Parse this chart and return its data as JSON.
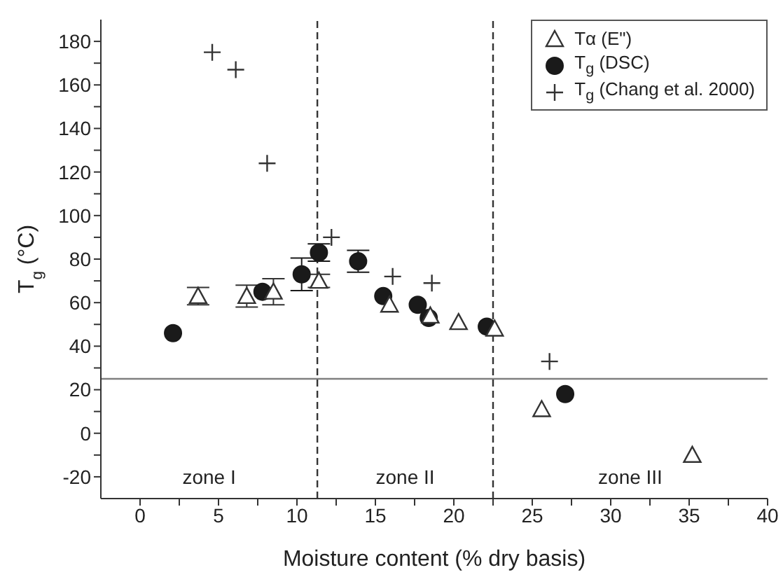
{
  "chart_data": {
    "type": "scatter",
    "xlabel": "Moisture content (% dry basis)",
    "ylabel": "T$_{g}$ (°C)",
    "xlim": [
      -2.5,
      40
    ],
    "xticks": [
      0,
      {
        "value": 2.5,
        "label": null
      },
      5,
      {
        "value": 7.5,
        "label": null
      },
      10,
      {
        "value": 12.5,
        "label": null
      },
      15,
      {
        "value": 17.5,
        "label": null
      },
      20,
      {
        "value": 22.5,
        "label": null
      },
      25,
      {
        "value": 27.5,
        "label": null
      },
      30,
      {
        "value": 32.5,
        "label": null
      },
      35,
      {
        "value": 37.5,
        "label": null
      },
      40
    ],
    "ylim": [
      -30,
      190
    ],
    "yticks": [
      -20,
      {
        "value": -10,
        "label": null
      },
      0,
      {
        "value": 10,
        "label": null
      },
      20,
      {
        "value": 30,
        "label": null
      },
      40,
      {
        "value": 50,
        "label": null
      },
      60,
      {
        "value": 70,
        "label": null
      },
      80,
      {
        "value": 90,
        "label": null
      },
      100,
      {
        "value": 110,
        "label": null
      },
      120,
      {
        "value": 130,
        "label": null
      },
      140,
      {
        "value": 150,
        "label": null
      },
      160,
      {
        "value": 170,
        "label": null
      },
      180
    ],
    "grid": false,
    "legend": "top right",
    "series": [
      {
        "name": "Tα (E\")",
        "color": "#333333",
        "marker": "triangle",
        "x": [
          3.7,
          6.8,
          8.5,
          11.4,
          15.9,
          18.5,
          20.3,
          22.6,
          25.6,
          35.2
        ],
        "values": [
          63,
          63,
          65,
          70,
          59,
          54,
          51,
          48,
          11,
          -10
        ],
        "errors": [
          4,
          5,
          6,
          3,
          null,
          null,
          null,
          null,
          null,
          null
        ]
      },
      {
        "name": "T$_{g}$ (DSC)",
        "color": "#1a1a1a",
        "marker": "circle",
        "x": [
          2.1,
          7.8,
          10.3,
          11.4,
          13.9,
          15.5,
          17.7,
          18.4,
          22.1,
          27.1
        ],
        "values": [
          46,
          65,
          73,
          83,
          79,
          63,
          59,
          53,
          49,
          18
        ],
        "errors": [
          null,
          null,
          7.5,
          4,
          5,
          null,
          null,
          null,
          null,
          null
        ]
      },
      {
        "name": "T$_{g}$ (Chang et al. 2000)",
        "color": "#333333",
        "marker": "cross",
        "x": [
          4.6,
          6.1,
          8.1,
          12.2,
          16.1,
          18.6,
          26.1
        ],
        "values": [
          175,
          167,
          124,
          90,
          72,
          69,
          33
        ]
      }
    ],
    "ref_lines": [
      {
        "axis": "y",
        "value": 25,
        "color": "#808080",
        "line_style": "solid"
      },
      {
        "axis": "x",
        "value": 11.3,
        "color": "#333333",
        "line_style": "dashed"
      },
      {
        "axis": "x",
        "value": 22.5,
        "color": "#333333",
        "line_style": "dashed"
      }
    ],
    "annotations": [
      "zone I",
      "zone II",
      "zone III"
    ]
  }
}
